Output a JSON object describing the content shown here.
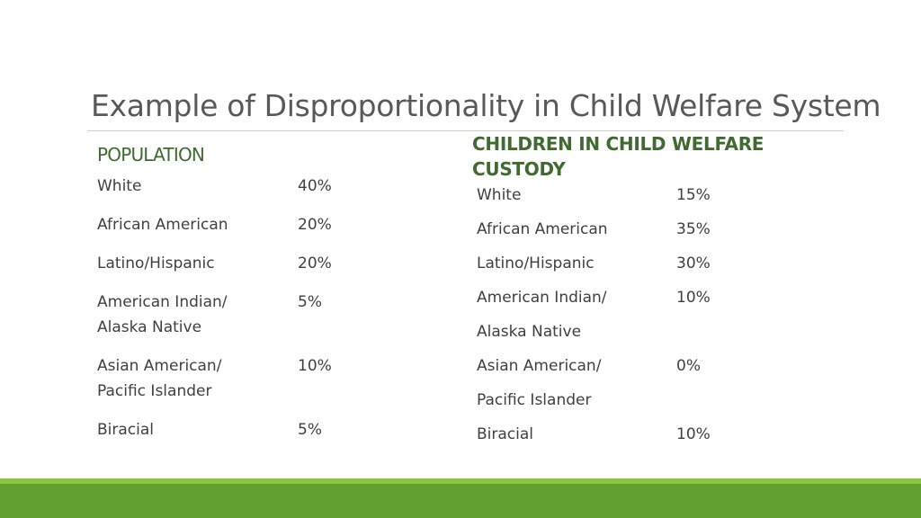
{
  "slide": {
    "title": "Example of Disproportionality in Child Welfare System"
  },
  "population": {
    "heading": "POPULATION",
    "rows": [
      {
        "label": "White",
        "value": "40%"
      },
      {
        "label": "African American",
        "value": "20%"
      },
      {
        "label": "Latino/Hispanic",
        "value": "20%"
      },
      {
        "label_lines": [
          "American Indian/",
          "Alaska Native"
        ],
        "value": "5%"
      },
      {
        "label_lines": [
          "Asian American/",
          "Pacific Islander"
        ],
        "value": "10%"
      },
      {
        "label": "Biracial",
        "value": "5%"
      }
    ]
  },
  "custody": {
    "heading_lines": [
      "CHILDREN IN CHILD WELFARE",
      "CUSTODY"
    ],
    "rows": [
      {
        "label": "White",
        "value": "15%"
      },
      {
        "label": "African American",
        "value": "35%"
      },
      {
        "label": "Latino/Hispanic",
        "value": "30%"
      },
      {
        "label_lines": [
          "American Indian/",
          "Alaska Native"
        ],
        "value": "10%"
      },
      {
        "label_lines": [
          "Asian American/",
          "Pacific Islander"
        ],
        "value": "0%"
      },
      {
        "label": "Biracial",
        "value": "10%"
      }
    ]
  },
  "colors": {
    "heading": "#3f6b30",
    "footer_light": "#8cc542",
    "footer_dark": "#62a131"
  }
}
